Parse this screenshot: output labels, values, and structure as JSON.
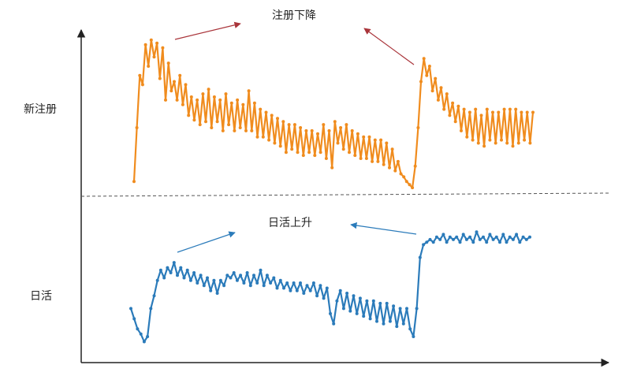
{
  "chart_data": [
    {
      "type": "line",
      "ylabel": "新注册",
      "annotation": "注册下降",
      "color": "#f08c1e",
      "series": [
        {
          "values": [
            5,
            40,
            74,
            68,
            94,
            80,
            97,
            86,
            95,
            72,
            92,
            58,
            82,
            64,
            70,
            58,
            74,
            55,
            68,
            48,
            60,
            45,
            58,
            42,
            62,
            44,
            65,
            40,
            60,
            44,
            58,
            38,
            62,
            42,
            56,
            38,
            58,
            40,
            55,
            38,
            64,
            38,
            56,
            34,
            52,
            34,
            50,
            32,
            48,
            30,
            46,
            28,
            44,
            24,
            42,
            26,
            42,
            24,
            40,
            22,
            38,
            24,
            38,
            22,
            36,
            24,
            42,
            20,
            38,
            14,
            44,
            30,
            40,
            26,
            42,
            24,
            38,
            22,
            36,
            20,
            34,
            20,
            34,
            18,
            32,
            18,
            32,
            16,
            30,
            14,
            26,
            12,
            18,
            10,
            8,
            5,
            3,
            1,
            15,
            40,
            70,
            85,
            74,
            80,
            64,
            72,
            58,
            66,
            52,
            62,
            48,
            56,
            44,
            54,
            38,
            52,
            34,
            50,
            32,
            52,
            30,
            48,
            28,
            52,
            32,
            50,
            30,
            50,
            32,
            52,
            30,
            52,
            28,
            52,
            30,
            50,
            32,
            50,
            30,
            50
          ]
        }
      ]
    },
    {
      "type": "line",
      "ylabel": "日活",
      "annotation": "日活上升",
      "color": "#2b7bba",
      "series": [
        {
          "values": [
            30,
            22,
            14,
            10,
            4,
            8,
            30,
            40,
            52,
            60,
            54,
            62,
            58,
            66,
            56,
            62,
            54,
            60,
            52,
            58,
            50,
            56,
            48,
            54,
            44,
            52,
            42,
            52,
            48,
            56,
            54,
            58,
            52,
            56,
            50,
            58,
            48,
            56,
            50,
            60,
            48,
            56,
            50,
            54,
            46,
            52,
            46,
            50,
            44,
            50,
            44,
            50,
            42,
            48,
            44,
            50,
            40,
            48,
            38,
            46,
            26,
            18,
            36,
            44,
            30,
            42,
            28,
            40,
            26,
            38,
            24,
            36,
            22,
            36,
            20,
            34,
            18,
            34,
            20,
            32,
            16,
            30,
            18,
            30,
            14,
            8,
            30,
            70,
            80,
            82,
            84,
            82,
            86,
            84,
            88,
            82,
            86,
            84,
            86,
            82,
            88,
            84,
            86,
            82,
            90,
            84,
            86,
            82,
            88,
            84,
            86,
            82,
            88,
            82,
            86,
            84,
            88,
            82,
            86,
            84,
            86
          ]
        }
      ]
    }
  ]
}
